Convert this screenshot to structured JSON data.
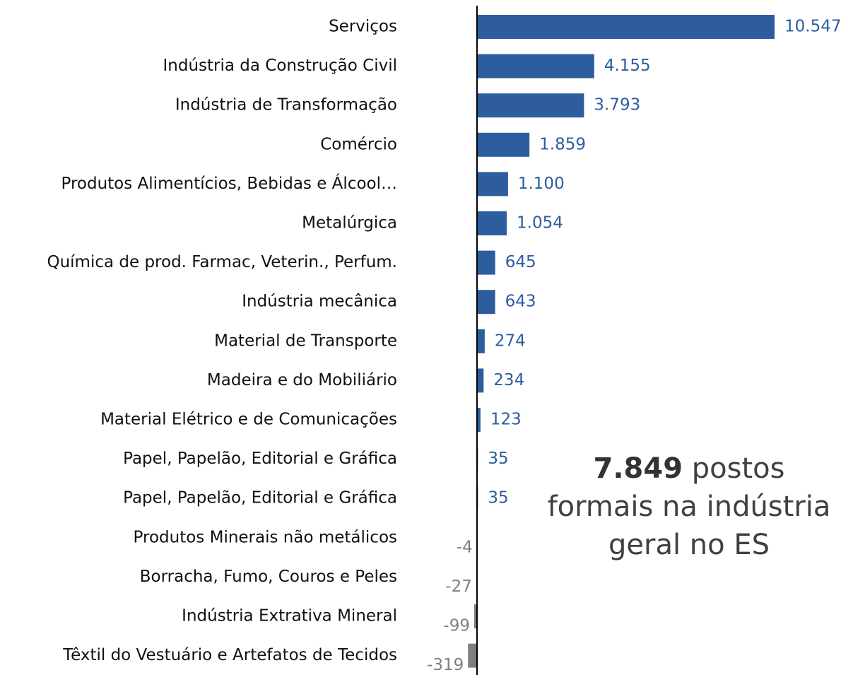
{
  "chart_data": {
    "type": "barh",
    "categories": [
      "Serviços",
      "Indústria da Construção Civil",
      "Indústria de Transformação",
      "Comércio",
      "Produtos Alimentícios, Bebidas e Álcool…",
      "Metalúrgica",
      "Química de prod. Farmac, Veterin., Perfum.",
      "Indústria mecânica",
      "Material de Transporte",
      "Madeira e do Mobiliário",
      "Material Elétrico e de Comunicações",
      "Papel, Papelão, Editorial e Gráfica",
      "Papel, Papelão, Editorial e Gráfica",
      "Produtos Minerais não metálicos",
      "Borracha, Fumo, Couros e Peles",
      "Indústria Extrativa Mineral",
      "Têxtil do Vestuário e Artefatos de Tecidos"
    ],
    "values": [
      10547,
      4155,
      3793,
      1859,
      1100,
      1054,
      645,
      643,
      274,
      234,
      123,
      35,
      35,
      -4,
      -27,
      -99,
      -319
    ],
    "value_labels": [
      "10.547",
      "4.155",
      "3.793",
      "1.859",
      "1.100",
      "1.054",
      "645",
      "643",
      "274",
      "234",
      "123",
      "35",
      "35",
      "-4",
      "-27",
      "-99",
      "-319"
    ],
    "color": "#2e5d9f",
    "negative_color": "#7f7f7f",
    "xlim": [
      -500,
      10547
    ],
    "annotation_number": "7.849",
    "annotation_text": "postos formais na indústria geral no ES"
  }
}
